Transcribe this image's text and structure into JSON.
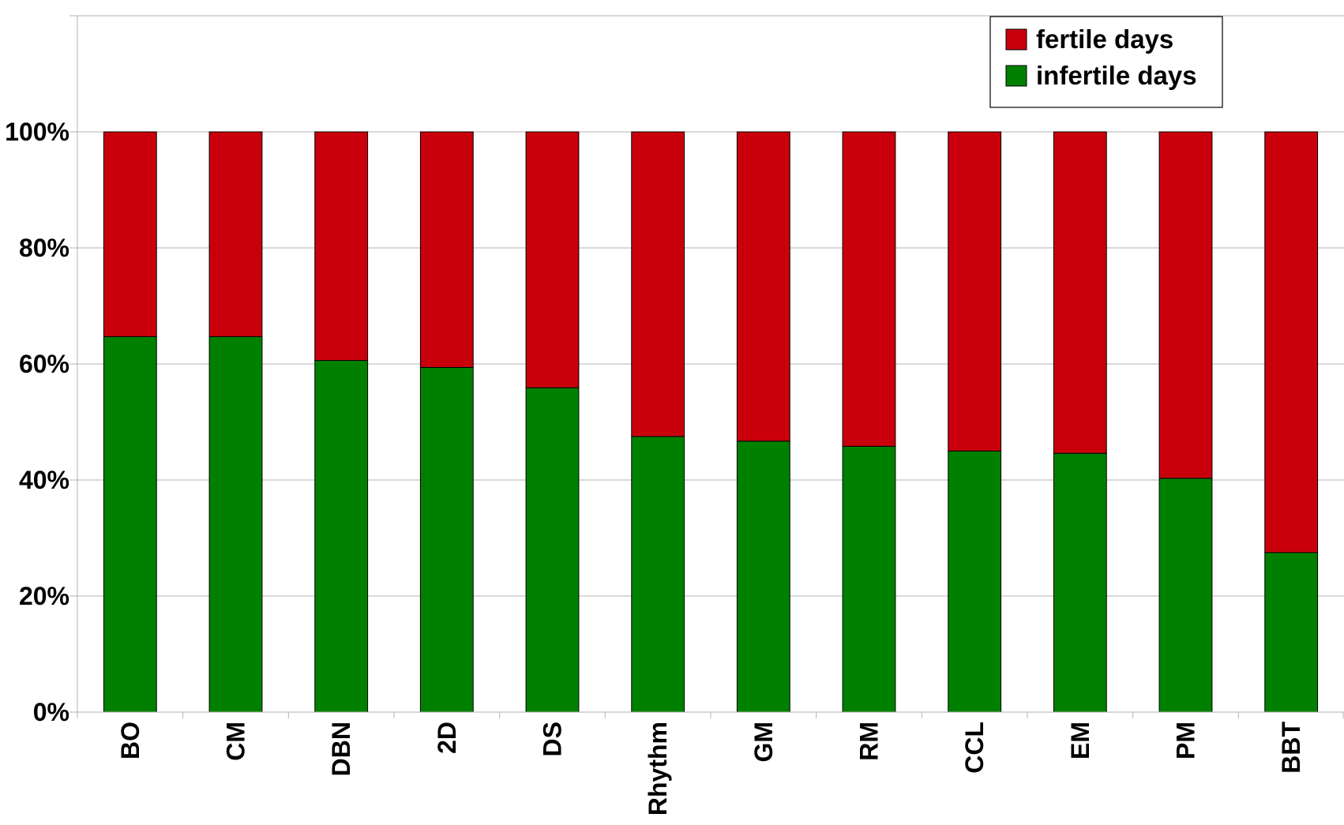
{
  "chart_data": {
    "type": "bar",
    "stacked": true,
    "categories": [
      "BO",
      "CM",
      "DBN",
      "2D",
      "DS",
      "Rhythm",
      "GM",
      "RM",
      "CCL",
      "EM",
      "PM",
      "BBT"
    ],
    "series": [
      {
        "name": "infertile days",
        "color": "#008000",
        "values": [
          64.7,
          64.7,
          60.6,
          59.4,
          55.9,
          47.5,
          46.7,
          45.8,
          45.0,
          44.6,
          40.3,
          27.5
        ]
      },
      {
        "name": "fertile days",
        "color": "#c9000b",
        "values": [
          35.3,
          35.3,
          39.4,
          40.6,
          44.1,
          52.5,
          53.3,
          54.2,
          55.0,
          55.4,
          59.7,
          72.5
        ]
      }
    ],
    "y_ticks": [
      "0%",
      "20%",
      "40%",
      "60%",
      "80%",
      "100%"
    ],
    "ylim": [
      0,
      120
    ],
    "y_unit": "%",
    "grid": true,
    "legend": {
      "position": "top-right",
      "entries": [
        {
          "label": "fertile days",
          "color": "#c9000b"
        },
        {
          "label": "infertile days",
          "color": "#008000"
        }
      ]
    },
    "title": "",
    "xlabel": "",
    "ylabel": ""
  }
}
